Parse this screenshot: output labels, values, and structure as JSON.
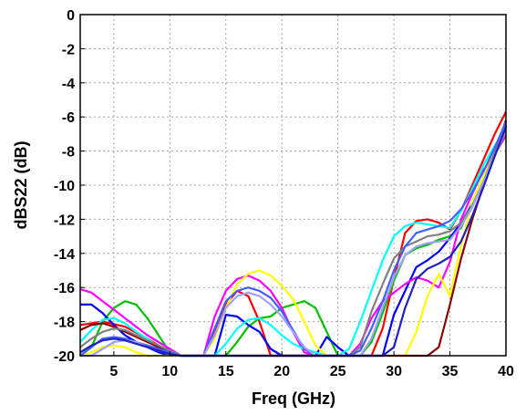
{
  "chart_data": {
    "type": "line",
    "xlabel": "Freq (GHz)",
    "ylabel": "dBS22 (dB)",
    "xlim": [
      2,
      40
    ],
    "ylim": [
      -20,
      0
    ],
    "x_ticks": [
      "5",
      "10",
      "15",
      "20",
      "25",
      "30",
      "35",
      "40"
    ],
    "y_ticks": [
      "0",
      "-2",
      "-4",
      "-6",
      "-8",
      "-10",
      "-12",
      "-14",
      "-16",
      "-18",
      "-20"
    ],
    "grid": true,
    "series": [
      {
        "color": "#ff0000",
        "x": [
          2,
          4,
          6,
          8,
          10,
          11,
          12,
          13,
          14,
          15,
          16,
          17,
          18,
          18.5,
          19,
          20,
          21,
          22,
          23,
          24,
          25,
          26,
          27,
          28,
          29,
          30,
          31,
          32,
          33,
          34,
          35,
          36,
          37,
          38,
          39,
          40
        ],
        "y": [
          -18.2,
          -18,
          -18.3,
          -19,
          -19.8,
          -20,
          -20,
          -20,
          -18.5,
          -17,
          -16.2,
          -16.5,
          -18,
          -19,
          -20,
          -20,
          -20,
          -20,
          -20,
          -20,
          -20,
          -20,
          -20,
          -20,
          -18.4,
          -15.5,
          -12.8,
          -12.1,
          -12,
          -12.2,
          -12.6,
          -11.5,
          -10,
          -8.5,
          -7,
          -5.7
        ]
      },
      {
        "color": "#00c000",
        "x": [
          2,
          3,
          4,
          5,
          6,
          7,
          8,
          9,
          10,
          11,
          12,
          13,
          14,
          15,
          16,
          17,
          18,
          19,
          20,
          21,
          22,
          23,
          24,
          25,
          26,
          27,
          28,
          29,
          30,
          31,
          32,
          33,
          34,
          35,
          36,
          37,
          38,
          39,
          40
        ],
        "y": [
          -20,
          -19.5,
          -18,
          -17.2,
          -16.8,
          -17,
          -17.8,
          -18.8,
          -19.8,
          -20,
          -20,
          -20,
          -20,
          -20,
          -19.2,
          -18.3,
          -17.8,
          -17.7,
          -17.2,
          -17,
          -16.8,
          -17.2,
          -18.6,
          -20,
          -20,
          -20,
          -19.2,
          -17.5,
          -15.6,
          -14.1,
          -13.7,
          -13.5,
          -13.2,
          -13,
          -12.5,
          -11,
          -9.5,
          -8.2,
          -7.1
        ]
      },
      {
        "color": "#0000ff",
        "x": [
          2,
          3,
          4,
          5,
          6,
          7,
          8,
          9,
          10,
          11,
          12,
          13,
          14,
          15,
          16,
          17,
          18,
          19,
          20,
          21,
          22,
          23,
          24,
          25,
          26,
          27,
          28,
          29,
          30,
          31,
          32,
          33,
          34,
          35,
          36,
          37,
          38,
          39,
          40
        ],
        "y": [
          -17,
          -17,
          -17.5,
          -18.2,
          -18.8,
          -19.2,
          -19.5,
          -19.8,
          -20,
          -20,
          -20,
          -20,
          -20,
          -17.6,
          -17.7,
          -18.2,
          -18.6,
          -19.6,
          -20,
          -20,
          -20,
          -20,
          -18.9,
          -19.5,
          -20,
          -20,
          -20,
          -20,
          -17.6,
          -16.2,
          -14.8,
          -14.4,
          -13.9,
          -13.1,
          -12.2,
          -11.1,
          -9.6,
          -8.1,
          -6.5
        ]
      },
      {
        "color": "#ff00ff",
        "x": [
          2,
          3,
          4,
          5,
          6,
          7,
          8,
          9,
          10,
          11,
          12,
          13,
          14,
          15,
          16,
          17,
          18,
          19,
          20,
          21,
          22,
          23,
          24,
          25,
          26,
          27,
          28,
          29,
          30,
          31,
          32,
          33,
          34,
          35,
          36,
          37,
          38,
          39,
          40
        ],
        "y": [
          -16.1,
          -16.3,
          -16.8,
          -17.3,
          -17.8,
          -18.3,
          -18.8,
          -19.2,
          -19.6,
          -20,
          -20,
          -20,
          -17.7,
          -16.2,
          -15.5,
          -15.3,
          -15.6,
          -16.2,
          -17.2,
          -18.6,
          -19.8,
          -20,
          -20,
          -20,
          -20,
          -19.3,
          -17.8,
          -16.8,
          -16.3,
          -15.8,
          -15.4,
          -15.6,
          -16,
          -14.5,
          -12,
          -10.5,
          -9.1,
          -8.2,
          -7
        ]
      },
      {
        "color": "#00ffff",
        "x": [
          2,
          3,
          4,
          5,
          6,
          7,
          8,
          9,
          10,
          11,
          12,
          13,
          14,
          15,
          16,
          17,
          18,
          19,
          20,
          21,
          22,
          23,
          24,
          25,
          26,
          27,
          28,
          29,
          30,
          31,
          32,
          33,
          34,
          35,
          36,
          37,
          38,
          39,
          40
        ],
        "y": [
          -19.2,
          -18.5,
          -17.9,
          -17.8,
          -18.1,
          -18.6,
          -19,
          -19.5,
          -19.7,
          -20,
          -20,
          -20,
          -20,
          -19.3,
          -18.4,
          -17.9,
          -17.8,
          -18.2,
          -18.8,
          -19.3,
          -19.6,
          -19.8,
          -20,
          -20,
          -19.6,
          -18,
          -16.2,
          -14.4,
          -13,
          -12.4,
          -12.2,
          -12.3,
          -12.4,
          -12.5,
          -11.5,
          -10.2,
          -8.8,
          -7.7,
          -6.6
        ]
      },
      {
        "color": "#ffff00",
        "x": [
          2,
          3,
          4,
          5,
          6,
          7,
          8,
          9,
          10,
          11,
          12,
          13,
          14,
          15,
          16,
          17,
          18,
          19,
          20,
          21,
          22,
          23,
          24,
          25,
          26,
          27,
          28,
          29,
          30,
          31,
          32,
          33,
          34,
          35,
          36,
          37,
          38,
          39,
          40
        ],
        "y": [
          -20,
          -19.8,
          -19.5,
          -19.4,
          -19.5,
          -19.8,
          -20,
          -20,
          -20,
          -20,
          -20,
          -20,
          -19,
          -17.2,
          -15.8,
          -15.2,
          -15,
          -15.3,
          -15.9,
          -16.7,
          -18,
          -19.4,
          -20,
          -20,
          -20,
          -20,
          -20,
          -20,
          -20,
          -20,
          -18.6,
          -16.5,
          -15.2,
          -16.5,
          -13.5,
          -11,
          -9.5,
          -8.1,
          -6.8
        ]
      },
      {
        "color": "#8b0000",
        "x": [
          2,
          3,
          4,
          5,
          6,
          7,
          8,
          9,
          10,
          11,
          12,
          13,
          14,
          15,
          16,
          17,
          18,
          19,
          20,
          21,
          22,
          23,
          24,
          25,
          26,
          27,
          28,
          29,
          30,
          31,
          32,
          33,
          34,
          35,
          36,
          37,
          38,
          39,
          40
        ],
        "y": [
          -18.5,
          -18.2,
          -18.1,
          -18.3,
          -18.6,
          -18.9,
          -19.2,
          -19.5,
          -19.8,
          -20,
          -20,
          -20,
          -20,
          -20,
          -20,
          -20,
          -20,
          -20,
          -20,
          -20,
          -20,
          -20,
          -20,
          -20,
          -20,
          -20,
          -20,
          -20,
          -20,
          -20,
          -20,
          -20,
          -19.5,
          -17,
          -14.3,
          -12,
          -10,
          -8.1,
          -6.2
        ]
      },
      {
        "color": "#808080",
        "x": [
          2,
          3,
          4,
          5,
          6,
          7,
          8,
          9,
          10,
          11,
          12,
          13,
          14,
          15,
          16,
          17,
          18,
          19,
          20,
          21,
          22,
          23,
          24,
          25,
          26,
          27,
          28,
          29,
          30,
          31,
          32,
          33,
          34,
          35,
          36,
          37,
          38,
          39,
          40
        ],
        "y": [
          -19.5,
          -19,
          -18.6,
          -18.4,
          -18.5,
          -18.8,
          -19.1,
          -19.4,
          -19.7,
          -20,
          -20,
          -20,
          -20,
          -20,
          -20,
          -20,
          -20,
          -20,
          -20,
          -20,
          -20,
          -20,
          -20,
          -20,
          -20,
          -19.5,
          -17.4,
          -15.8,
          -14.3,
          -13.6,
          -13.3,
          -13,
          -12.9,
          -12.7,
          -12.2,
          -11.2,
          -9.8,
          -8.1,
          -6.3
        ]
      },
      {
        "color": "#4060ff",
        "x": [
          2,
          3,
          4,
          5,
          6,
          7,
          8,
          9,
          10,
          11,
          12,
          13,
          14,
          15,
          16,
          17,
          18,
          19,
          20,
          21,
          22,
          23,
          24,
          25,
          26,
          27,
          28,
          29,
          30,
          31,
          32,
          33,
          34,
          35,
          36,
          37,
          38,
          39,
          40
        ],
        "y": [
          -20,
          -19.5,
          -19,
          -18.9,
          -19,
          -19.2,
          -19.4,
          -19.6,
          -19.8,
          -20,
          -20,
          -20,
          -18.4,
          -16.8,
          -16.2,
          -16,
          -16.2,
          -16.6,
          -17.4,
          -18.5,
          -19.6,
          -20,
          -20,
          -20,
          -20,
          -19.7,
          -18.4,
          -16.8,
          -15,
          -13.6,
          -12.8,
          -12.6,
          -12.4,
          -12.1,
          -11.4,
          -10.4,
          -9.2,
          -7.8,
          -6.3
        ]
      },
      {
        "color": "#a0a0ff",
        "x": [
          2,
          3,
          4,
          5,
          6,
          7,
          8,
          9,
          10,
          11,
          12,
          13,
          14,
          15,
          16,
          17,
          18,
          19,
          20,
          21,
          22,
          23,
          24,
          25,
          26,
          27,
          28,
          29,
          30,
          31,
          32,
          33,
          34,
          35,
          36,
          37,
          38,
          39,
          40
        ],
        "y": [
          -20,
          -20,
          -19.6,
          -19.2,
          -19.1,
          -19.2,
          -19.5,
          -19.7,
          -19.9,
          -20,
          -20,
          -20,
          -18.8,
          -17.2,
          -16.5,
          -16.3,
          -16.5,
          -17,
          -17.7,
          -18.6,
          -19.5,
          -20,
          -20,
          -20,
          -20,
          -20,
          -19,
          -17.2,
          -15.4,
          -14.1,
          -13.6,
          -13.4,
          -13.3,
          -13.2,
          -12.4,
          -11.3,
          -9.8,
          -8.3,
          -6.7
        ]
      },
      {
        "color": "#2020c0",
        "x": [
          2,
          3,
          4,
          5,
          6,
          7,
          8,
          9,
          10,
          11,
          12,
          13,
          14,
          15,
          16,
          17,
          18,
          19,
          20,
          21,
          22,
          23,
          24,
          25,
          26,
          27,
          28,
          29,
          30,
          31,
          32,
          33,
          34,
          35,
          36,
          37,
          38,
          39,
          40
        ],
        "y": [
          -19.8,
          -19.4,
          -19.1,
          -19,
          -19.1,
          -19.3,
          -19.5,
          -19.7,
          -19.9,
          -20,
          -20,
          -20,
          -20,
          -20,
          -20,
          -20,
          -20,
          -20,
          -20,
          -20,
          -20,
          -20,
          -20,
          -20,
          -20,
          -20,
          -20,
          -20,
          -19.5,
          -17.2,
          -15.5,
          -14.9,
          -14.6,
          -14.2,
          -13.3,
          -11.8,
          -10.1,
          -8.3,
          -6.6
        ]
      }
    ]
  }
}
